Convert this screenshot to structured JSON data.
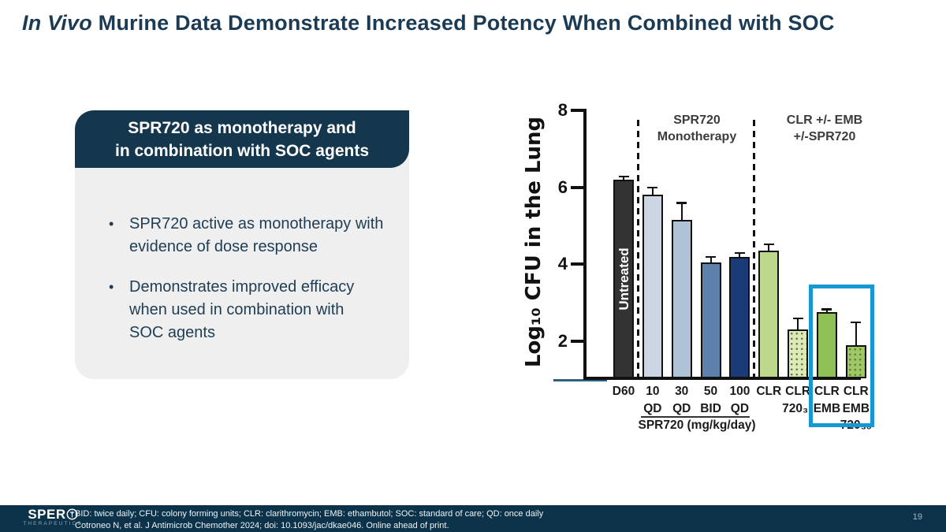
{
  "slide": {
    "title_italic": "In Vivo",
    "title_rest": " Murine Data Demonstrate Increased Potency When Combined with SOC",
    "page_number": "19"
  },
  "panel": {
    "header_lines": [
      "SPR720 as monotherapy and",
      "in combination with SOC agents"
    ],
    "bullets": [
      {
        "lines": [
          "SPR720 active as monotherapy with",
          "evidence of dose response"
        ]
      },
      {
        "lines": [
          "Demonstrates improved efficacy",
          "when used in combination with",
          "SOC agents"
        ]
      }
    ]
  },
  "chart_data": {
    "type": "bar",
    "ylabel": "Log₁₀ CFU in the Lung",
    "ylim": [
      1,
      8
    ],
    "yticks": [
      8,
      6,
      4,
      2
    ],
    "grid": false,
    "group_labels": [
      {
        "lines": [
          "SPR720",
          "Monotherapy"
        ]
      },
      {
        "lines": [
          "CLR +/- EMB",
          "+/-SPR720"
        ]
      }
    ],
    "x_group_label": "SPR720 (mg/kg/day)",
    "bars": [
      {
        "labels": [
          "D60"
        ],
        "annotation": "Untreated",
        "value": 6.2,
        "error": 0.08,
        "color": "#333333",
        "dotted": false
      },
      {
        "labels": [
          "10",
          "QD"
        ],
        "value": 5.8,
        "error": 0.2,
        "color": "#ccd6e3",
        "dotted": false
      },
      {
        "labels": [
          "30",
          "QD"
        ],
        "value": 5.15,
        "error": 0.45,
        "color": "#b0c3d6",
        "dotted": false
      },
      {
        "labels": [
          "50",
          "BID"
        ],
        "value": 4.05,
        "error": 0.15,
        "color": "#5d81ab",
        "dotted": false
      },
      {
        "labels": [
          "100",
          "QD"
        ],
        "value": 4.2,
        "error": 0.1,
        "color": "#1a3a78",
        "dotted": false
      },
      {
        "labels": [
          "CLR"
        ],
        "value": 4.35,
        "error": 0.17,
        "color": "#bdd78b",
        "dotted": false
      },
      {
        "labels": [
          "CLR",
          "720₃₀"
        ],
        "value": 2.3,
        "error": 0.3,
        "color": "#dde9b8",
        "dotted": true
      },
      {
        "labels": [
          "CLR",
          "EMB"
        ],
        "value": 2.75,
        "error": 0.08,
        "color": "#8ec055",
        "dotted": false
      },
      {
        "labels": [
          "CLR",
          "EMB",
          "720₃₀"
        ],
        "value": 1.9,
        "error": 0.6,
        "color": "#9fc765",
        "dotted": true
      }
    ],
    "highlighted_bars": [
      "CLR EMB",
      "CLR EMB 720₃₀"
    ],
    "highlight_color": "#1798d3"
  },
  "footer": {
    "logo_text": "SPER",
    "logo_sub": "THERAPEUTICS",
    "abbreviations": "BID: twice daily; CFU: colony forming units; CLR: clarithromycin; EMB: ethambutol; SOC: standard of care; QD: once daily",
    "citation": "Cotroneo N, et al. J Antimicrob Chemother 2024; doi: 10.1093/jac/dkae046. Online ahead of print."
  }
}
